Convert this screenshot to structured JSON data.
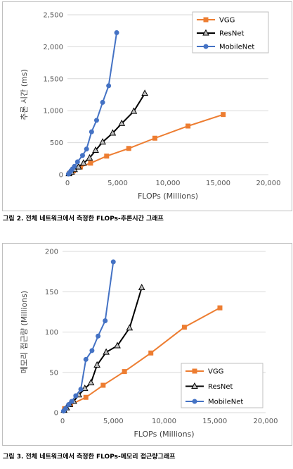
{
  "charts": [
    {
      "type": "line",
      "title": "",
      "xlabel": "FLOPs (Millions)",
      "ylabel": "추론 시간 (ms)",
      "xlim": [
        0,
        20000
      ],
      "ylim": [
        0,
        2500
      ],
      "xticks": [
        0,
        5000,
        10000,
        15000,
        20000
      ],
      "xtick_labels": [
        "0",
        "5,000",
        "10,000",
        "15,000",
        "20,000"
      ],
      "yticks": [
        0,
        500,
        1000,
        1500,
        2000,
        2500
      ],
      "ytick_labels": [
        "0",
        "500",
        "1,000",
        "1,500",
        "2,000",
        "2,500"
      ],
      "grid": "horizontal",
      "legend_position": "top-right",
      "series": [
        {
          "name": "VGG",
          "color": "#ED7D31",
          "marker": "square",
          "x": [
            200,
            600,
            1300,
            2300,
            3900,
            6100,
            8700,
            12000,
            15500
          ],
          "y": [
            20,
            60,
            120,
            180,
            290,
            410,
            570,
            760,
            940
          ]
        },
        {
          "name": "ResNet",
          "color": "#000000",
          "marker": "triangle",
          "x": [
            150,
            400,
            700,
            1100,
            1600,
            2200,
            2800,
            3500,
            4500,
            5400,
            6600,
            7700
          ],
          "y": [
            15,
            40,
            80,
            120,
            180,
            260,
            380,
            510,
            650,
            800,
            990,
            1270
          ]
        },
        {
          "name": "MobileNet",
          "color": "#4472C4",
          "marker": "circle",
          "x": [
            100,
            200,
            350,
            500,
            700,
            1000,
            1500,
            1900,
            2400,
            2900,
            3500,
            4100,
            4900
          ],
          "y": [
            10,
            30,
            60,
            90,
            130,
            200,
            300,
            400,
            670,
            850,
            1130,
            1390,
            2220
          ]
        }
      ]
    },
    {
      "type": "line",
      "title": "",
      "xlabel": "FLOPs (Millions)",
      "ylabel": "메모리 접근량 (Millions)",
      "xlim": [
        0,
        20000
      ],
      "ylim": [
        0,
        200
      ],
      "xticks": [
        0,
        5000,
        10000,
        15000,
        20000
      ],
      "xtick_labels": [
        "0",
        "5,000",
        "10,000",
        "15,000",
        "20,000"
      ],
      "yticks": [
        0,
        50,
        100,
        150,
        200
      ],
      "ytick_labels": [
        "0",
        "50",
        "100",
        "150",
        "200"
      ],
      "grid": "horizontal",
      "legend_position": "bottom-right",
      "series": [
        {
          "name": "VGG",
          "color": "#ED7D31",
          "marker": "square",
          "x": [
            200,
            800,
            2300,
            4000,
            6100,
            8700,
            12000,
            15500
          ],
          "y": [
            5,
            10,
            19,
            34,
            51,
            74,
            106,
            130
          ]
        },
        {
          "name": "ResNet",
          "color": "#000000",
          "marker": "triangle",
          "x": [
            150,
            400,
            700,
            1100,
            1600,
            2200,
            2800,
            3400,
            4300,
            5400,
            6600,
            7800
          ],
          "y": [
            3,
            6,
            10,
            14,
            22,
            30,
            37,
            59,
            75,
            83,
            105,
            155
          ]
        },
        {
          "name": "MobileNet",
          "color": "#4472C4",
          "marker": "circle",
          "x": [
            100,
            300,
            600,
            900,
            1300,
            1800,
            2300,
            2900,
            3500,
            4200,
            5000
          ],
          "y": [
            2,
            5,
            10,
            14,
            21,
            29,
            66,
            77,
            95,
            114,
            187
          ]
        }
      ]
    }
  ],
  "captions": [
    "그림 2. 전체 네트워크에서 측정한 FLOPs-추론시간 그래프",
    "그림 3. 전체 네트워크에서 측정한 FLOPs-메모리 접근량그래프"
  ]
}
